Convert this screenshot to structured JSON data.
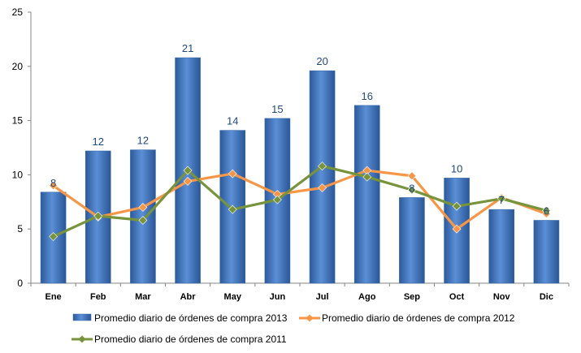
{
  "chart_data": {
    "type": "bar",
    "categories": [
      "Ene",
      "Feb",
      "Mar",
      "Abr",
      "May",
      "Jun",
      "Jul",
      "Ago",
      "Sep",
      "Oct",
      "Nov",
      "Dic"
    ],
    "series": [
      {
        "name": "Promedio diario de órdenes de compra 2013",
        "type": "bar",
        "color": "#4a7ebb",
        "values": [
          8.4,
          12.2,
          12.3,
          20.8,
          14.1,
          15.2,
          19.6,
          16.4,
          7.9,
          9.7,
          6.8,
          5.8
        ],
        "data_labels": [
          "8",
          "12",
          "12",
          "21",
          "14",
          "15",
          "20",
          "16",
          "8",
          "10",
          "7",
          "6"
        ]
      },
      {
        "name": "Promedio diario de órdenes de compra 2012",
        "type": "line",
        "color": "#f79646",
        "values": [
          9.0,
          6.1,
          7.0,
          9.4,
          10.1,
          8.2,
          8.8,
          10.4,
          9.9,
          5.0,
          7.9,
          6.4
        ]
      },
      {
        "name": "Promedio diario de órdenes de compra 2011",
        "type": "line",
        "color": "#77933c",
        "values": [
          4.3,
          6.2,
          5.8,
          10.4,
          6.8,
          7.7,
          10.8,
          9.8,
          8.6,
          7.1,
          7.8,
          6.7
        ]
      }
    ],
    "yticks": [
      "0",
      "5",
      "10",
      "15",
      "20",
      "25"
    ],
    "ylim": [
      0,
      25
    ],
    "grid": false,
    "legend_position": "bottom"
  }
}
